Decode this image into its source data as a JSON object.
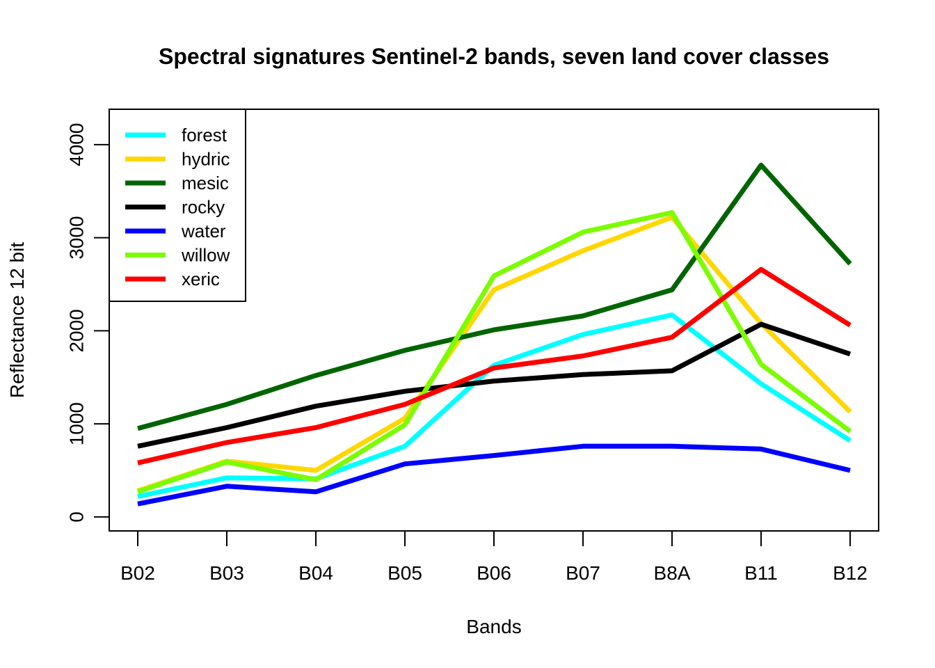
{
  "chart_data": {
    "type": "line",
    "title": "Spectral signatures Sentinel-2 bands, seven land cover classes",
    "xlabel": "Bands",
    "ylabel": "Reflectance 12 bit",
    "categories": [
      "B02",
      "B03",
      "B04",
      "B05",
      "B06",
      "B07",
      "B8A",
      "B11",
      "B12"
    ],
    "ylim": [
      -150,
      4380
    ],
    "yticks": [
      0,
      1000,
      2000,
      3000,
      4000
    ],
    "legend_position": "top-left",
    "grid": false,
    "series": [
      {
        "name": "forest",
        "color": "#00FFFF",
        "values": [
          220,
          420,
          410,
          760,
          1630,
          1960,
          2170,
          1430,
          820
        ]
      },
      {
        "name": "hydric",
        "color": "#FFD700",
        "values": [
          280,
          600,
          500,
          1060,
          2440,
          2860,
          3220,
          2080,
          1130
        ]
      },
      {
        "name": "mesic",
        "color": "#006400",
        "values": [
          950,
          1210,
          1520,
          1790,
          2010,
          2160,
          2440,
          3780,
          2720
        ]
      },
      {
        "name": "rocky",
        "color": "#000000",
        "values": [
          760,
          960,
          1190,
          1350,
          1460,
          1530,
          1570,
          2070,
          1750
        ]
      },
      {
        "name": "water",
        "color": "#0000FF",
        "values": [
          140,
          330,
          270,
          570,
          660,
          760,
          760,
          730,
          500
        ]
      },
      {
        "name": "willow",
        "color": "#7CFC00",
        "values": [
          270,
          590,
          400,
          990,
          2590,
          3060,
          3270,
          1640,
          920
        ]
      },
      {
        "name": "xeric",
        "color": "#FF0000",
        "values": [
          580,
          800,
          960,
          1210,
          1600,
          1730,
          1930,
          2660,
          2060
        ]
      }
    ]
  }
}
